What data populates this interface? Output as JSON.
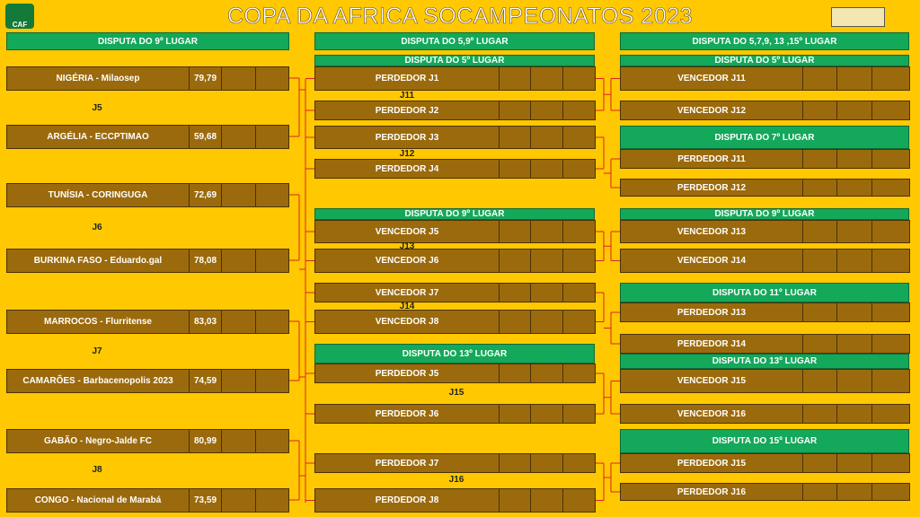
{
  "title": "COPA DA AFRICA SOCAMPEONATOS  2023",
  "logo": "CAF",
  "columns": [
    {
      "header": "DISPUTA DO 9º LUGAR",
      "teams": [
        {
          "name": "NIGÉRIA - Milaosep",
          "score": "79,79"
        },
        {
          "name": "ARGÉLIA -  ECCPTIMAO",
          "score": "59,68"
        },
        {
          "name": "TUNÍSIA - CORINGUGA",
          "score": "72,69"
        },
        {
          "name": "BURKINA FASO - Eduardo.gal",
          "score": "78,08"
        },
        {
          "name": "MARROCOS - Flurritense",
          "score": "83,03"
        },
        {
          "name": "CAMARÕES - Barbacenopolis 2023",
          "score": "74,59"
        },
        {
          "name": "GABÃO - Negro-Jalde FC",
          "score": "80,99"
        },
        {
          "name": "CONGO - Nacional de Marabá",
          "score": "73,59"
        }
      ],
      "games": [
        "J5",
        "J6",
        "J7",
        "J8"
      ]
    },
    {
      "header": "DISPUTA DO 5,9º LUGAR",
      "sections": [
        {
          "header": "DISPUTA DO 5º LUGAR",
          "rows": [
            "PERDEDOR J1",
            "PERDEDOR J2",
            "PERDEDOR J3",
            "PERDEDOR J4"
          ],
          "games": [
            "J11",
            "J12"
          ]
        },
        {
          "header": "DISPUTA DO 9º LUGAR",
          "rows": [
            "VENCEDOR J5",
            "VENCEDOR J6",
            "VENCEDOR J7",
            "VENCEDOR J8"
          ],
          "games": [
            "J13",
            "J14"
          ]
        },
        {
          "header": "DISPUTA DO 13º LUGAR",
          "rows": [
            "PERDEDOR J5",
            "PERDEDOR J6",
            "PERDEDOR J7",
            "PERDEDOR J8"
          ],
          "games": [
            "J15",
            "J16"
          ]
        }
      ]
    },
    {
      "header": "DISPUTA DO 5,7,9, 13 ,15º LUGAR",
      "sections": [
        {
          "header": "DISPUTA DO 5º LUGAR",
          "rows": [
            "VENCEDOR J11",
            "VENCEDOR J12"
          ]
        },
        {
          "header": "DISPUTA DO 7º LUGAR",
          "rows": [
            "PERDEDOR J11",
            "PERDEDOR J12"
          ]
        },
        {
          "header": "DISPUTA DO 9º LUGAR",
          "rows": [
            "VENCEDOR J13",
            "VENCEDOR J14"
          ]
        },
        {
          "header": "DISPUTA DO 11º LUGAR",
          "rows": [
            "PERDEDOR J13",
            "PERDEDOR J14"
          ]
        },
        {
          "header": "DISPUTA DO 13º LUGAR",
          "rows": [
            "VENCEDOR J15",
            "VENCEDOR J16"
          ]
        },
        {
          "header": "DISPUTA DO 15º LUGAR",
          "rows": [
            "PERDEDOR J15",
            "PERDEDOR J16"
          ]
        }
      ]
    }
  ]
}
